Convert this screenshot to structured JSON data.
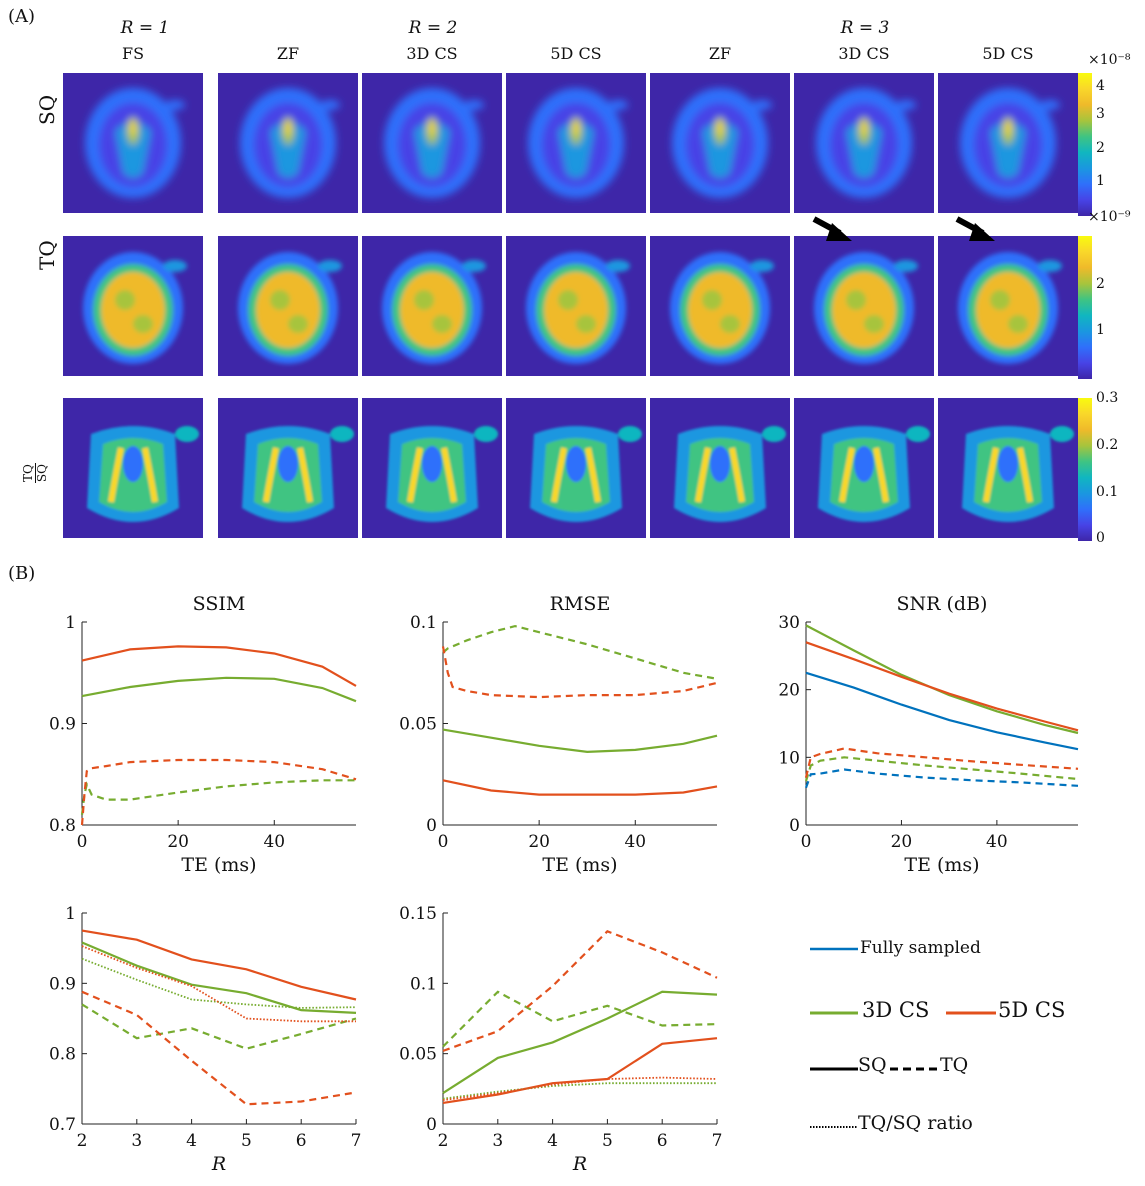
{
  "panel_a": {
    "label": "(A)",
    "r_groups": [
      "R = 1",
      "R = 2",
      "R = 3"
    ],
    "columns": [
      "FS",
      "ZF",
      "3D CS",
      "5D CS",
      "ZF",
      "3D CS",
      "5D CS"
    ],
    "rows": [
      {
        "label": "SQ",
        "colorbar": {
          "exponent": "×10⁻⁸",
          "ticks": [
            "4",
            "3",
            "2",
            "1"
          ]
        }
      },
      {
        "label": "TQ",
        "colorbar": {
          "exponent": "×10⁻⁹",
          "ticks": [
            "2",
            "1"
          ]
        }
      },
      {
        "label_num": "TQ",
        "label_den": "SQ",
        "colorbar": {
          "exponent": "",
          "ticks": [
            "0.3",
            "0.2",
            "0.1",
            "0"
          ]
        }
      }
    ],
    "colormap": [
      "#3e26a8",
      "#4743e6",
      "#2f6ffb",
      "#1a97e0",
      "#10b6c0",
      "#3fc482",
      "#a7c43c",
      "#efba2a",
      "#f9d72a",
      "#f9fb0e"
    ]
  },
  "panel_b": {
    "label": "(B)"
  },
  "colors": {
    "fully_sampled": "#0072bd",
    "cs3d": "#77ac30",
    "cs5d": "#e2501d"
  },
  "legend": {
    "fully_sampled": "Fully sampled",
    "cs3d": "3D CS",
    "cs5d": "5D CS",
    "sq": "SQ",
    "tq": "TQ",
    "ratio": "TQ/SQ ratio"
  },
  "chart_data": [
    {
      "type": "line",
      "title": "SSIM",
      "xlabel": "TE (ms)",
      "ylabel": "",
      "xlim": [
        0,
        57
      ],
      "ylim": [
        0.8,
        1
      ],
      "xticks": [
        "0",
        "20",
        "40"
      ],
      "yticks": [
        "0.8",
        "0.9",
        "1"
      ],
      "series": [
        {
          "name": "3D CS SQ",
          "color": "cs3d",
          "dash": "solid",
          "x": [
            0,
            10,
            20,
            30,
            40,
            50,
            57
          ],
          "y": [
            0.927,
            0.936,
            0.942,
            0.945,
            0.944,
            0.935,
            0.922
          ]
        },
        {
          "name": "5D CS SQ",
          "color": "cs5d",
          "dash": "solid",
          "x": [
            0,
            10,
            20,
            30,
            40,
            50,
            57
          ],
          "y": [
            0.962,
            0.973,
            0.976,
            0.975,
            0.969,
            0.956,
            0.937
          ]
        },
        {
          "name": "3D CS TQ",
          "color": "cs3d",
          "dash": "dashed",
          "x": [
            0,
            0.5,
            1,
            2,
            5,
            10,
            20,
            30,
            40,
            50,
            57
          ],
          "y": [
            0.81,
            0.83,
            0.84,
            0.83,
            0.825,
            0.825,
            0.832,
            0.838,
            0.842,
            0.844,
            0.844
          ]
        },
        {
          "name": "5D CS TQ",
          "color": "cs5d",
          "dash": "dashed",
          "x": [
            0,
            0.5,
            1,
            2,
            5,
            10,
            20,
            30,
            40,
            50,
            57
          ],
          "y": [
            0.8,
            0.83,
            0.853,
            0.856,
            0.858,
            0.862,
            0.864,
            0.864,
            0.862,
            0.855,
            0.845
          ]
        }
      ]
    },
    {
      "type": "line",
      "title": "RMSE",
      "xlabel": "TE (ms)",
      "ylabel": "",
      "xlim": [
        0,
        57
      ],
      "ylim": [
        0,
        0.1
      ],
      "xticks": [
        "0",
        "20",
        "40"
      ],
      "yticks": [
        "0",
        "0.05",
        "0.1"
      ],
      "series": [
        {
          "name": "3D CS SQ",
          "color": "cs3d",
          "dash": "solid",
          "x": [
            0,
            10,
            20,
            30,
            40,
            50,
            57
          ],
          "y": [
            0.047,
            0.043,
            0.039,
            0.036,
            0.037,
            0.04,
            0.044
          ]
        },
        {
          "name": "5D CS SQ",
          "color": "cs5d",
          "dash": "solid",
          "x": [
            0,
            10,
            20,
            30,
            40,
            50,
            57
          ],
          "y": [
            0.022,
            0.017,
            0.015,
            0.015,
            0.015,
            0.016,
            0.019
          ]
        },
        {
          "name": "3D CS TQ",
          "color": "cs3d",
          "dash": "dashed",
          "x": [
            0,
            1,
            5,
            10,
            15,
            20,
            30,
            40,
            50,
            57
          ],
          "y": [
            0.085,
            0.087,
            0.091,
            0.095,
            0.098,
            0.095,
            0.089,
            0.082,
            0.075,
            0.072
          ]
        },
        {
          "name": "5D CS TQ",
          "color": "cs5d",
          "dash": "dashed",
          "x": [
            0,
            1,
            2,
            5,
            10,
            20,
            30,
            40,
            50,
            57
          ],
          "y": [
            0.088,
            0.075,
            0.068,
            0.066,
            0.064,
            0.063,
            0.064,
            0.064,
            0.066,
            0.07
          ]
        }
      ]
    },
    {
      "type": "line",
      "title": "SNR (dB)",
      "xlabel": "TE (ms)",
      "ylabel": "",
      "xlim": [
        0,
        57
      ],
      "ylim": [
        0,
        30
      ],
      "xticks": [
        "0",
        "20",
        "40"
      ],
      "yticks": [
        "0",
        "10",
        "20",
        "30"
      ],
      "series": [
        {
          "name": "Fully sampled SQ",
          "color": "fully_sampled",
          "dash": "solid",
          "x": [
            0,
            10,
            20,
            30,
            40,
            50,
            57
          ],
          "y": [
            22.5,
            20.3,
            17.8,
            15.5,
            13.7,
            12.2,
            11.2
          ]
        },
        {
          "name": "3D CS SQ",
          "color": "cs3d",
          "dash": "solid",
          "x": [
            0,
            10,
            20,
            30,
            40,
            50,
            57
          ],
          "y": [
            29.5,
            25.8,
            22.2,
            19.2,
            16.8,
            14.8,
            13.6
          ]
        },
        {
          "name": "5D CS SQ",
          "color": "cs5d",
          "dash": "solid",
          "x": [
            0,
            10,
            20,
            30,
            40,
            50,
            57
          ],
          "y": [
            27.0,
            24.5,
            21.9,
            19.4,
            17.2,
            15.3,
            14.0
          ]
        },
        {
          "name": "Fully sampled TQ",
          "color": "fully_sampled",
          "dash": "dashed",
          "x": [
            0,
            1,
            3,
            8,
            15,
            25,
            35,
            45,
            57
          ],
          "y": [
            5.5,
            7.5,
            7.6,
            8.2,
            7.6,
            7.0,
            6.6,
            6.3,
            5.8
          ]
        },
        {
          "name": "3D CS TQ",
          "color": "cs3d",
          "dash": "dashed",
          "x": [
            0,
            1,
            3,
            8,
            15,
            25,
            35,
            45,
            57
          ],
          "y": [
            6.5,
            8.8,
            9.5,
            10.0,
            9.5,
            8.8,
            8.2,
            7.6,
            6.8
          ]
        },
        {
          "name": "5D CS TQ",
          "color": "cs5d",
          "dash": "dashed",
          "x": [
            0,
            1,
            3,
            8,
            15,
            25,
            35,
            45,
            57
          ],
          "y": [
            7.0,
            10.0,
            10.5,
            11.3,
            10.6,
            10.0,
            9.4,
            8.9,
            8.3
          ]
        }
      ]
    },
    {
      "type": "line",
      "title": "",
      "xlabel": "R",
      "ylabel": "",
      "xlim": [
        2,
        7
      ],
      "ylim": [
        0.7,
        1
      ],
      "xticks": [
        "2",
        "3",
        "4",
        "5",
        "6",
        "7"
      ],
      "yticks": [
        "0.7",
        "0.8",
        "0.9",
        "1"
      ],
      "series": [
        {
          "name": "3D CS SQ",
          "color": "cs3d",
          "dash": "solid",
          "x": [
            2,
            3,
            4,
            5,
            6,
            7
          ],
          "y": [
            0.958,
            0.925,
            0.898,
            0.886,
            0.862,
            0.858
          ]
        },
        {
          "name": "5D CS SQ",
          "color": "cs5d",
          "dash": "solid",
          "x": [
            2,
            3,
            4,
            5,
            6,
            7
          ],
          "y": [
            0.975,
            0.962,
            0.934,
            0.92,
            0.895,
            0.877
          ]
        },
        {
          "name": "3D CS TQ",
          "color": "cs3d",
          "dash": "dashed",
          "x": [
            2,
            3,
            4,
            5,
            6,
            7
          ],
          "y": [
            0.87,
            0.822,
            0.836,
            0.807,
            0.828,
            0.85
          ]
        },
        {
          "name": "5D CS TQ",
          "color": "cs5d",
          "dash": "dashed",
          "x": [
            2,
            3,
            4,
            5,
            6,
            7
          ],
          "y": [
            0.888,
            0.855,
            0.79,
            0.728,
            0.732,
            0.745
          ]
        },
        {
          "name": "3D CS TQ/SQ ratio",
          "color": "cs3d",
          "dash": "dotted",
          "x": [
            2,
            3,
            4,
            5,
            6,
            7
          ],
          "y": [
            0.935,
            0.905,
            0.877,
            0.87,
            0.865,
            0.866
          ]
        },
        {
          "name": "5D CS TQ/SQ ratio",
          "color": "cs5d",
          "dash": "dotted",
          "x": [
            2,
            3,
            4,
            5,
            6,
            7
          ],
          "y": [
            0.953,
            0.922,
            0.896,
            0.85,
            0.846,
            0.846
          ]
        }
      ]
    },
    {
      "type": "line",
      "title": "",
      "xlabel": "R",
      "ylabel": "",
      "xlim": [
        2,
        7
      ],
      "ylim": [
        0,
        0.15
      ],
      "xticks": [
        "2",
        "3",
        "4",
        "5",
        "6",
        "7"
      ],
      "yticks": [
        "0",
        "0.05",
        "0.1",
        "0.15"
      ],
      "series": [
        {
          "name": "3D CS SQ",
          "color": "cs3d",
          "dash": "solid",
          "x": [
            2,
            3,
            4,
            5,
            6,
            7
          ],
          "y": [
            0.022,
            0.047,
            0.058,
            0.075,
            0.094,
            0.092
          ]
        },
        {
          "name": "5D CS SQ",
          "color": "cs5d",
          "dash": "solid",
          "x": [
            2,
            3,
            4,
            5,
            6,
            7
          ],
          "y": [
            0.015,
            0.021,
            0.029,
            0.032,
            0.057,
            0.061
          ]
        },
        {
          "name": "3D CS TQ",
          "color": "cs3d",
          "dash": "dashed",
          "x": [
            2,
            3,
            4,
            5,
            6,
            7
          ],
          "y": [
            0.055,
            0.094,
            0.073,
            0.084,
            0.07,
            0.071
          ]
        },
        {
          "name": "5D CS TQ",
          "color": "cs5d",
          "dash": "dashed",
          "x": [
            2,
            3,
            4,
            5,
            6,
            7
          ],
          "y": [
            0.052,
            0.066,
            0.098,
            0.137,
            0.122,
            0.104
          ]
        },
        {
          "name": "3D CS TQ/SQ ratio",
          "color": "cs3d",
          "dash": "dotted",
          "x": [
            2,
            3,
            4,
            5,
            6,
            7
          ],
          "y": [
            0.018,
            0.023,
            0.027,
            0.029,
            0.029,
            0.029
          ]
        },
        {
          "name": "5D CS TQ/SQ ratio",
          "color": "cs5d",
          "dash": "dotted",
          "x": [
            2,
            3,
            4,
            5,
            6,
            7
          ],
          "y": [
            0.017,
            0.022,
            0.028,
            0.032,
            0.033,
            0.032
          ]
        }
      ]
    }
  ]
}
